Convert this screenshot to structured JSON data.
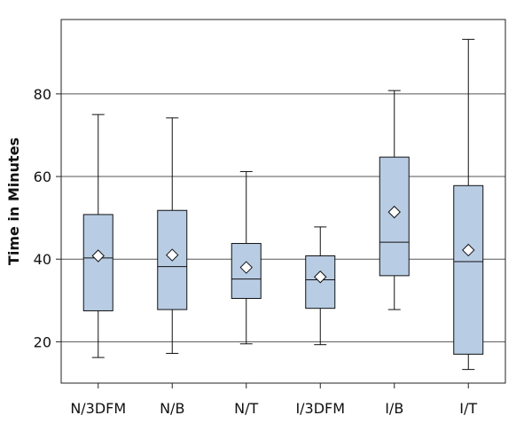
{
  "chart_data": {
    "type": "box",
    "title": "",
    "xlabel": "",
    "ylabel": "Time in Minutes",
    "ylim": [
      10,
      98
    ],
    "yticks": [
      20,
      40,
      60,
      80
    ],
    "grid": true,
    "box_color": "#b8cce4",
    "categories": [
      "N/3DFM",
      "N/B",
      "N/T",
      "I/3DFM",
      "I/B",
      "I/T"
    ],
    "boxes": [
      {
        "min": 16.2,
        "q1": 27.5,
        "median": 40.3,
        "q3": 50.8,
        "max": 75.0,
        "mean": 40.8
      },
      {
        "min": 17.2,
        "q1": 27.8,
        "median": 38.2,
        "q3": 51.8,
        "max": 74.2,
        "mean": 41.0
      },
      {
        "min": 19.5,
        "q1": 30.5,
        "median": 35.2,
        "q3": 43.8,
        "max": 61.2,
        "mean": 38.0
      },
      {
        "min": 19.3,
        "q1": 28.1,
        "median": 35.0,
        "q3": 40.8,
        "max": 47.8,
        "mean": 35.7
      },
      {
        "min": 27.8,
        "q1": 36.0,
        "median": 44.1,
        "q3": 64.7,
        "max": 80.8,
        "mean": 51.4
      },
      {
        "min": 13.3,
        "q1": 17.0,
        "median": 39.4,
        "q3": 57.8,
        "max": 93.2,
        "mean": 42.2
      }
    ]
  }
}
